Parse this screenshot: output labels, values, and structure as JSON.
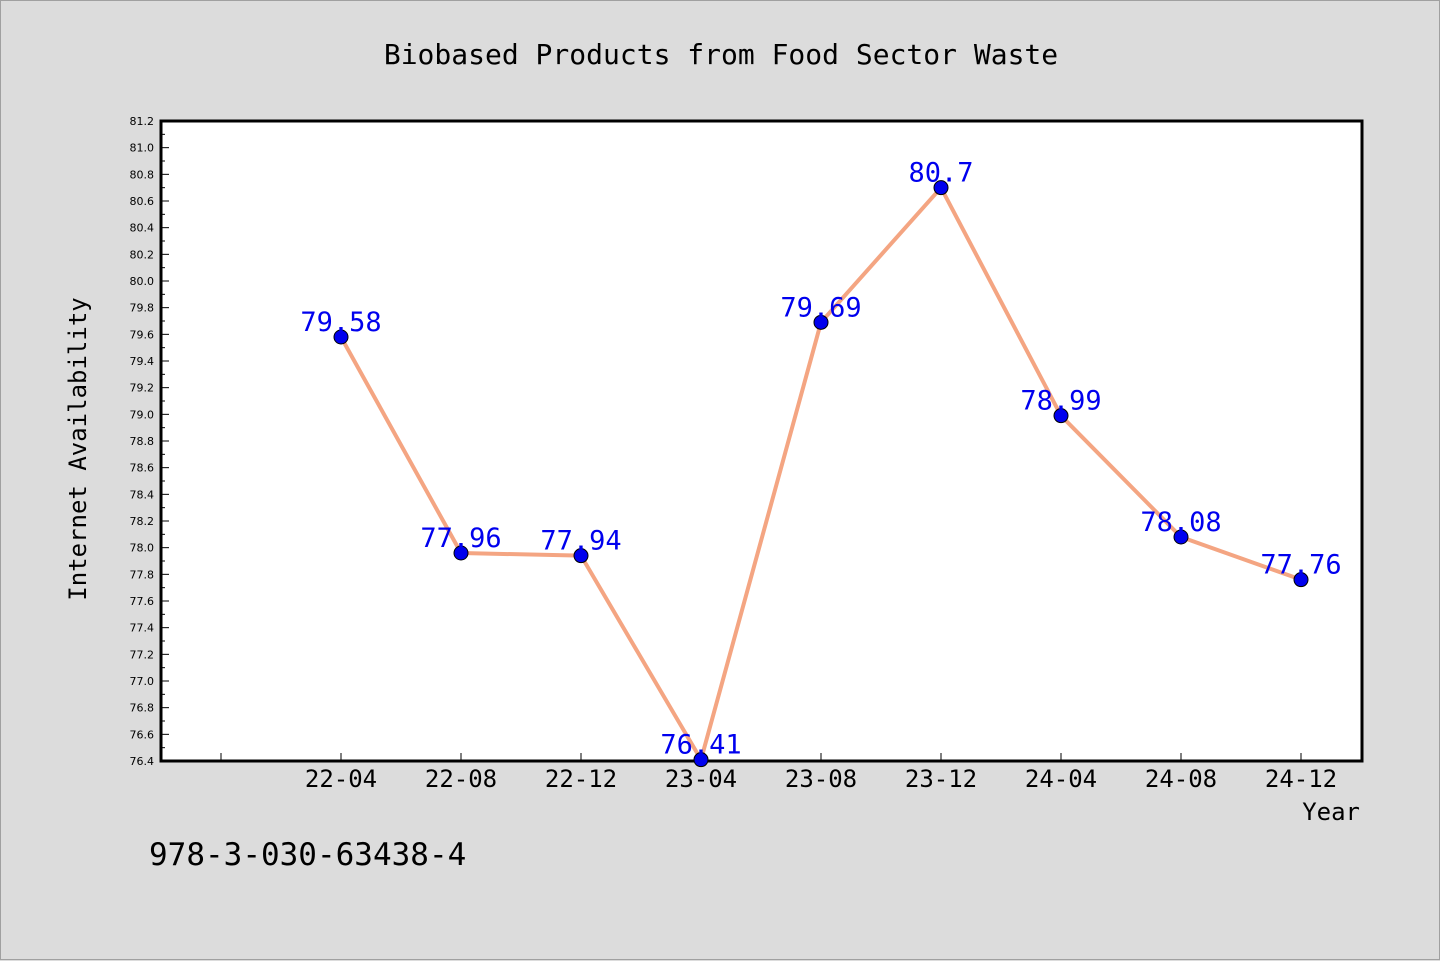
{
  "chart_data": {
    "type": "line",
    "title": "Biobased Products from Food Sector Waste",
    "xlabel": "Year",
    "ylabel": "Internet Availability",
    "categories": [
      "22-04",
      "22-08",
      "22-12",
      "23-04",
      "23-08",
      "23-12",
      "24-04",
      "24-08",
      "24-12"
    ],
    "series": [
      {
        "values": [
          79.58,
          77.96,
          77.94,
          76.41,
          79.69,
          80.7,
          78.99,
          78.08,
          77.76
        ],
        "labels": [
          "79.58",
          "77.96",
          "77.94",
          "76.41",
          "79.69",
          "80.7",
          "78.99",
          "78.08",
          "77.76"
        ],
        "line_color": "#f4a582",
        "marker_color": "#0000ee",
        "label_color": "#0000ee"
      }
    ],
    "ylim": [
      76.4,
      81.2
    ],
    "yticks": [
      "76.4",
      "76.6",
      "76.8",
      "77.0",
      "77.2",
      "77.4",
      "77.6",
      "77.8",
      "78.0",
      "78.2",
      "78.4",
      "78.6",
      "78.8",
      "79.0",
      "79.2",
      "79.4",
      "79.6",
      "79.8",
      "80.0",
      "80.2",
      "80.4",
      "80.6",
      "80.8",
      "81.0",
      "81.2"
    ],
    "grid": false,
    "legend": "none"
  },
  "footer": {
    "isbn": "978-3-030-63438-4"
  },
  "colors": {
    "background": "#dcdcdc",
    "plot_background": "#ffffff",
    "axis": "#000000"
  }
}
